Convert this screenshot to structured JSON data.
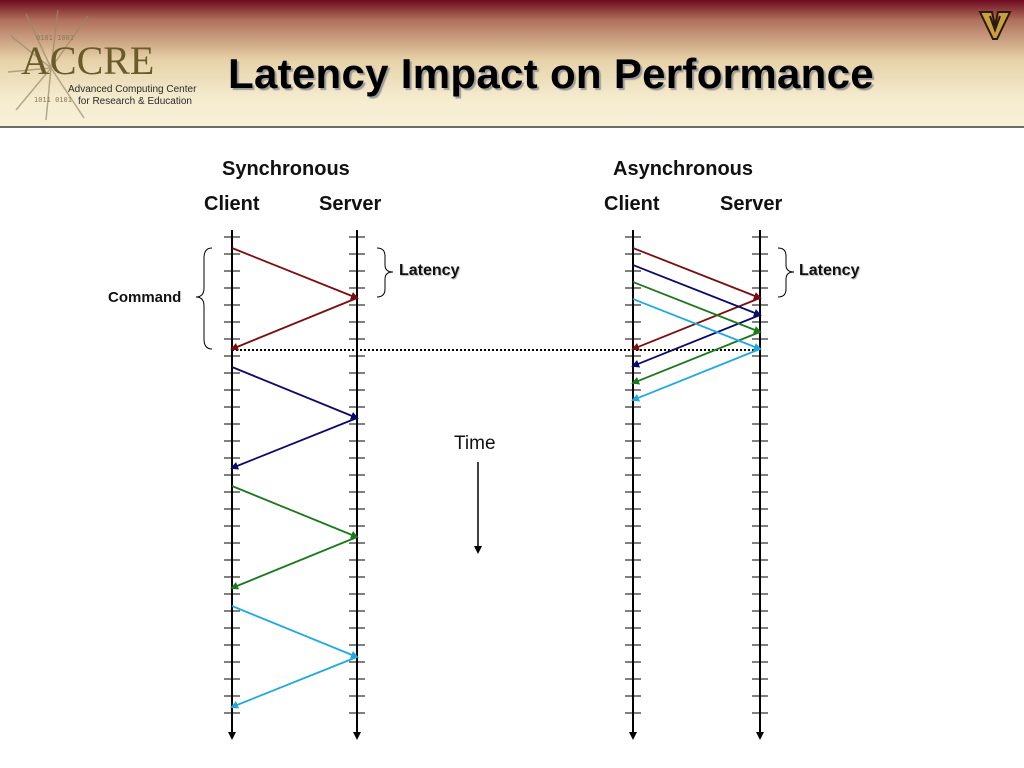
{
  "header": {
    "title": "Latency Impact on Performance",
    "logo": {
      "name": "ACCRE",
      "subtitle_line1": "Advanced Computing Center",
      "subtitle_line2": "for Research & Education"
    },
    "corner_icon": "vanderbilt-v-icon"
  },
  "synchronous": {
    "heading": "Synchronous",
    "client_label": "Client",
    "server_label": "Server",
    "latency_label": "Latency",
    "command_label": "Command"
  },
  "asynchronous": {
    "heading": "Asynchronous",
    "client_label": "Client",
    "server_label": "Server",
    "latency_label": "Latency"
  },
  "time_label": "Time",
  "colors": {
    "command1": "#7a0d0d",
    "command2": "#0a0a6e",
    "command3": "#1a7a1a",
    "command4": "#1eaae0"
  }
}
